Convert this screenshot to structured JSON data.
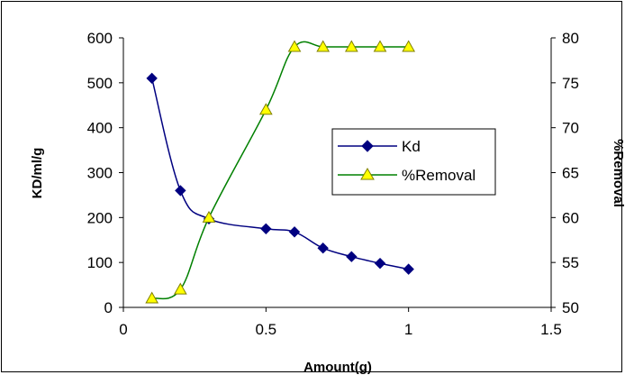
{
  "chart_data": {
    "type": "line",
    "xlabel": "Amount(g)",
    "ylabel": "KD/ml/g",
    "y2label": "%Removal",
    "xlim": [
      0,
      1.5
    ],
    "ylim": [
      0,
      600
    ],
    "y2lim": [
      50,
      80
    ],
    "xticks": [
      0,
      0.5,
      1,
      1.5
    ],
    "yticks": [
      0,
      100,
      200,
      300,
      400,
      500,
      600
    ],
    "y2ticks": [
      50,
      55,
      60,
      65,
      70,
      75,
      80
    ],
    "xtick_labels": [
      "0",
      "0.5",
      "1",
      "1.5"
    ],
    "ytick_labels": [
      "0",
      "100",
      "200",
      "300",
      "400",
      "500",
      "600"
    ],
    "y2tick_labels": [
      "50",
      "55",
      "60",
      "65",
      "70",
      "75",
      "80"
    ],
    "legend_position": "right-center",
    "grid": false,
    "series": [
      {
        "name": "Kd",
        "axis": "left",
        "color": "#000080",
        "marker": "diamond",
        "x": [
          0.1,
          0.2,
          0.3,
          0.5,
          0.6,
          0.7,
          0.8,
          0.9,
          1.0
        ],
        "values": [
          510,
          260,
          197,
          175,
          168,
          132,
          113,
          98,
          85
        ]
      },
      {
        "name": "%Removal",
        "axis": "right",
        "color": "#008000",
        "marker": "triangle",
        "marker_fill": "#ffff00",
        "x": [
          0.1,
          0.2,
          0.3,
          0.5,
          0.6,
          0.7,
          0.8,
          0.9,
          1.0
        ],
        "values": [
          51,
          52,
          60,
          72,
          79,
          79,
          79,
          79,
          79
        ]
      }
    ]
  }
}
